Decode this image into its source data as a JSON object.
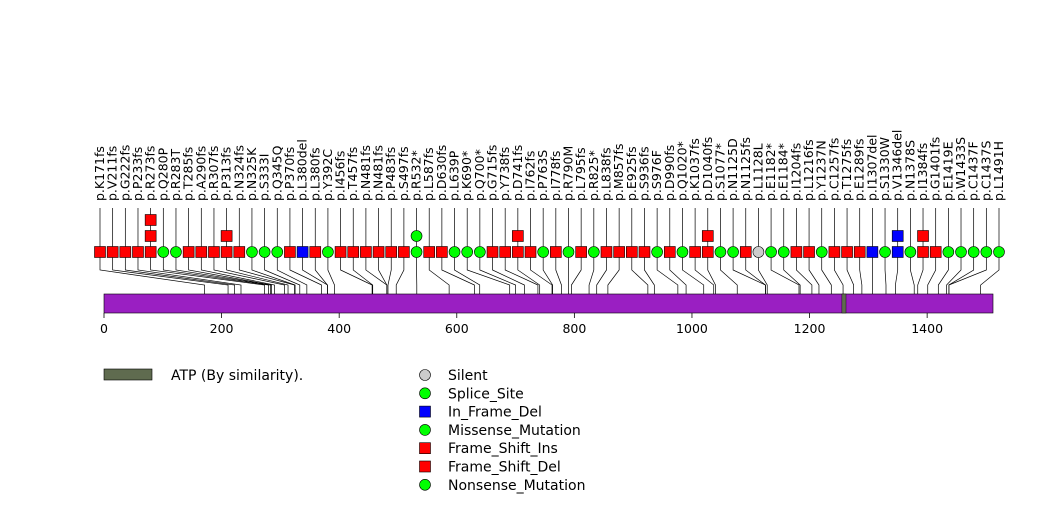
{
  "chart_data": {
    "type": "lollipop",
    "protein_length": 1512,
    "axis": {
      "min": 0,
      "max": 1512,
      "ticks": [
        0,
        200,
        400,
        600,
        800,
        1000,
        1200,
        1400
      ]
    },
    "categories": {
      "silent": {
        "label": "Silent",
        "shape": "circle",
        "color": "#cccccc"
      },
      "splice": {
        "label": "Splice_Site",
        "shape": "circle",
        "color": "#00ff00"
      },
      "inframe": {
        "label": "In_Frame_Del",
        "shape": "square",
        "color": "#0000ff"
      },
      "missense": {
        "label": "Missense_Mutation",
        "shape": "circle",
        "color": "#00ff00"
      },
      "fs_ins": {
        "label": "Frame_Shift_Ins",
        "shape": "square",
        "color": "#ff0000"
      },
      "fs_del": {
        "label": "Frame_Shift_Del",
        "shape": "square",
        "color": "#ff0000"
      },
      "nonsense": {
        "label": "Nonsense_Mutation",
        "shape": "circle",
        "color": "#00ff00"
      }
    },
    "legend_order": [
      "silent",
      "splice",
      "inframe",
      "missense",
      "fs_ins",
      "fs_del",
      "nonsense"
    ],
    "domains": [
      {
        "label": "ATP (By similarity).",
        "start": 1255,
        "end": 1262,
        "color": "#5f6b4f"
      }
    ],
    "bar_color": "#9a1fc2",
    "mutations": [
      {
        "label": "p.K171fs",
        "pos": 171,
        "stack": [
          "fs_del"
        ]
      },
      {
        "label": "p.V211fs",
        "pos": 211,
        "stack": [
          "fs_del"
        ]
      },
      {
        "label": "p.G222fs",
        "pos": 222,
        "stack": [
          "fs_del"
        ]
      },
      {
        "label": "p.P233fs",
        "pos": 233,
        "stack": [
          "fs_del"
        ]
      },
      {
        "label": "p.R273fs",
        "pos": 273,
        "stack": [
          "fs_del",
          "fs_del",
          "fs_del"
        ]
      },
      {
        "label": "p.Q280P",
        "pos": 280,
        "stack": [
          "missense"
        ]
      },
      {
        "label": "p.R283T",
        "pos": 283,
        "stack": [
          "missense"
        ]
      },
      {
        "label": "p.T285fs",
        "pos": 285,
        "stack": [
          "fs_del"
        ]
      },
      {
        "label": "p.A290fs",
        "pos": 290,
        "stack": [
          "fs_del"
        ]
      },
      {
        "label": "p.R307fs",
        "pos": 307,
        "stack": [
          "fs_del"
        ]
      },
      {
        "label": "p.P313fs",
        "pos": 313,
        "stack": [
          "fs_del",
          "fs_del"
        ]
      },
      {
        "label": "p.N324fs",
        "pos": 324,
        "stack": [
          "fs_del"
        ]
      },
      {
        "label": "p.N325K",
        "pos": 325,
        "stack": [
          "missense"
        ]
      },
      {
        "label": "p.S333I",
        "pos": 333,
        "stack": [
          "missense"
        ]
      },
      {
        "label": "p.Q345Q",
        "pos": 345,
        "stack": [
          "missense"
        ]
      },
      {
        "label": "p.P370fs",
        "pos": 370,
        "stack": [
          "fs_del"
        ]
      },
      {
        "label": "p.L380del",
        "pos": 380,
        "stack": [
          "inframe"
        ]
      },
      {
        "label": "p.L380fs",
        "pos": 380,
        "stack": [
          "fs_del"
        ]
      },
      {
        "label": "p.Y392C",
        "pos": 392,
        "stack": [
          "missense"
        ]
      },
      {
        "label": "p.I456fs",
        "pos": 456,
        "stack": [
          "fs_del"
        ]
      },
      {
        "label": "p.T457fs",
        "pos": 457,
        "stack": [
          "fs_del"
        ]
      },
      {
        "label": "p.N481fs",
        "pos": 481,
        "stack": [
          "fs_del"
        ]
      },
      {
        "label": "p.N481fs",
        "pos": 481,
        "stack": [
          "fs_del"
        ]
      },
      {
        "label": "p.P483fs",
        "pos": 483,
        "stack": [
          "fs_del"
        ]
      },
      {
        "label": "p.S497fs",
        "pos": 497,
        "stack": [
          "fs_del"
        ]
      },
      {
        "label": "p.R532*",
        "pos": 532,
        "stack": [
          "nonsense",
          "nonsense"
        ]
      },
      {
        "label": "p.L587fs",
        "pos": 587,
        "stack": [
          "fs_del"
        ]
      },
      {
        "label": "p.D630fs",
        "pos": 630,
        "stack": [
          "fs_del"
        ]
      },
      {
        "label": "p.L639P",
        "pos": 639,
        "stack": [
          "missense"
        ]
      },
      {
        "label": "p.K690*",
        "pos": 690,
        "stack": [
          "nonsense"
        ]
      },
      {
        "label": "p.Q700*",
        "pos": 700,
        "stack": [
          "nonsense"
        ]
      },
      {
        "label": "p.G715fs",
        "pos": 715,
        "stack": [
          "fs_del"
        ]
      },
      {
        "label": "p.Y738fs",
        "pos": 738,
        "stack": [
          "fs_del"
        ]
      },
      {
        "label": "p.D741fs",
        "pos": 741,
        "stack": [
          "fs_del",
          "fs_del"
        ]
      },
      {
        "label": "p.I762fs",
        "pos": 762,
        "stack": [
          "fs_del"
        ]
      },
      {
        "label": "p.P763S",
        "pos": 763,
        "stack": [
          "missense"
        ]
      },
      {
        "label": "p.I778fs",
        "pos": 778,
        "stack": [
          "fs_del"
        ]
      },
      {
        "label": "p.R790M",
        "pos": 790,
        "stack": [
          "missense"
        ]
      },
      {
        "label": "p.L795fs",
        "pos": 795,
        "stack": [
          "fs_del"
        ]
      },
      {
        "label": "p.R825*",
        "pos": 825,
        "stack": [
          "nonsense"
        ]
      },
      {
        "label": "p.L838fs",
        "pos": 838,
        "stack": [
          "fs_del"
        ]
      },
      {
        "label": "p.M857fs",
        "pos": 857,
        "stack": [
          "fs_del"
        ]
      },
      {
        "label": "p.E925fs",
        "pos": 925,
        "stack": [
          "fs_del"
        ]
      },
      {
        "label": "p.S936fs",
        "pos": 936,
        "stack": [
          "fs_del"
        ]
      },
      {
        "label": "p.S976F",
        "pos": 976,
        "stack": [
          "missense"
        ]
      },
      {
        "label": "p.D990fs",
        "pos": 990,
        "stack": [
          "fs_del"
        ]
      },
      {
        "label": "p.Q1020*",
        "pos": 1020,
        "stack": [
          "nonsense"
        ]
      },
      {
        "label": "p.K1037fs",
        "pos": 1037,
        "stack": [
          "fs_del"
        ]
      },
      {
        "label": "p.D1040fs",
        "pos": 1040,
        "stack": [
          "fs_del",
          "fs_del"
        ]
      },
      {
        "label": "p.S1077*",
        "pos": 1077,
        "stack": [
          "nonsense"
        ]
      },
      {
        "label": "p.N1125D",
        "pos": 1125,
        "stack": [
          "missense"
        ]
      },
      {
        "label": "p.N1125fs",
        "pos": 1125,
        "stack": [
          "fs_del"
        ]
      },
      {
        "label": "p.L1128L",
        "pos": 1128,
        "stack": [
          "silent"
        ]
      },
      {
        "label": "p.E1182*",
        "pos": 1182,
        "stack": [
          "nonsense"
        ]
      },
      {
        "label": "p.E1184*",
        "pos": 1184,
        "stack": [
          "nonsense"
        ]
      },
      {
        "label": "p.I1204fs",
        "pos": 1204,
        "stack": [
          "fs_del"
        ]
      },
      {
        "label": "p.L1216fs",
        "pos": 1216,
        "stack": [
          "fs_del"
        ]
      },
      {
        "label": "p.Y1237N",
        "pos": 1237,
        "stack": [
          "missense"
        ]
      },
      {
        "label": "p.C1257fs",
        "pos": 1257,
        "stack": [
          "fs_del"
        ]
      },
      {
        "label": "p.T1275fs",
        "pos": 1275,
        "stack": [
          "fs_del"
        ]
      },
      {
        "label": "p.E1289fs",
        "pos": 1289,
        "stack": [
          "fs_del"
        ]
      },
      {
        "label": "p.I1307del",
        "pos": 1307,
        "stack": [
          "inframe"
        ]
      },
      {
        "label": "p.S1330W",
        "pos": 1330,
        "stack": [
          "missense"
        ]
      },
      {
        "label": "p.V1346del",
        "pos": 1346,
        "stack": [
          "inframe",
          "inframe"
        ]
      },
      {
        "label": "p.N1378S",
        "pos": 1378,
        "stack": [
          "missense"
        ]
      },
      {
        "label": "p.I1384fs",
        "pos": 1384,
        "stack": [
          "fs_del",
          "fs_del"
        ]
      },
      {
        "label": "p.G1401fs",
        "pos": 1401,
        "stack": [
          "fs_del"
        ]
      },
      {
        "label": "p.E1419E",
        "pos": 1419,
        "stack": [
          "missense"
        ]
      },
      {
        "label": "p.W1433S",
        "pos": 1433,
        "stack": [
          "missense"
        ]
      },
      {
        "label": "p.C1437F",
        "pos": 1437,
        "stack": [
          "missense"
        ]
      },
      {
        "label": "p.C1437S",
        "pos": 1437,
        "stack": [
          "missense"
        ]
      },
      {
        "label": "p.L1491H",
        "pos": 1491,
        "stack": [
          "missense"
        ]
      }
    ]
  }
}
